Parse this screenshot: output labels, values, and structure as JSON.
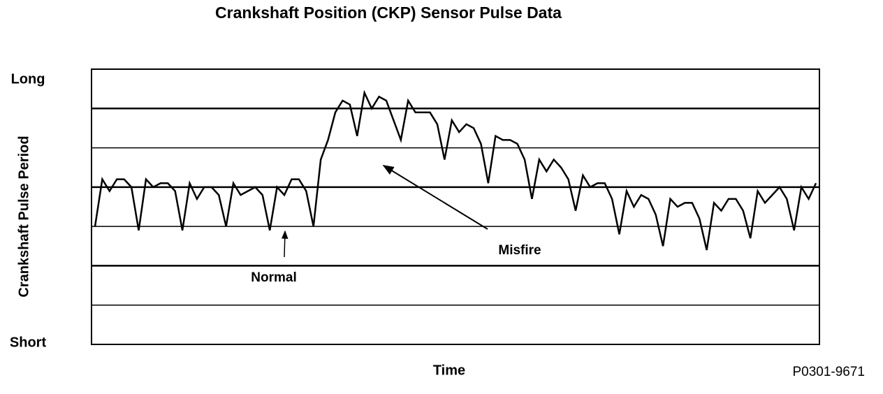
{
  "chart_data": {
    "type": "line",
    "title": "Crankshaft Position (CKP) Sensor Pulse Data",
    "x_label": "Time",
    "y_label": "Crankshaft Pulse Period",
    "figure_code": "P0301-9671",
    "annotations": [
      "Normal",
      "Misfire"
    ],
    "ylim": [
      0,
      7
    ],
    "yticks": [
      {
        "value": 7,
        "label": "Long"
      },
      {
        "value": 0,
        "label": "Short"
      }
    ],
    "major_grid": [
      2,
      4,
      6
    ],
    "minor_grid": [
      1,
      3,
      5
    ],
    "color": "#000000",
    "values": [
      3.0,
      4.2,
      3.9,
      4.2,
      4.2,
      4.0,
      2.9,
      4.2,
      4.0,
      4.1,
      4.1,
      3.9,
      2.9,
      4.1,
      3.7,
      4.0,
      4.0,
      3.8,
      3.0,
      4.1,
      3.8,
      3.9,
      4.0,
      3.8,
      2.9,
      4.0,
      3.8,
      4.2,
      4.2,
      3.9,
      3.0,
      4.7,
      5.2,
      5.9,
      6.2,
      6.1,
      5.3,
      6.4,
      6.0,
      6.3,
      6.2,
      5.7,
      5.2,
      6.2,
      5.9,
      5.9,
      5.9,
      5.6,
      4.7,
      5.7,
      5.4,
      5.6,
      5.5,
      5.1,
      4.1,
      5.3,
      5.2,
      5.2,
      5.1,
      4.7,
      3.7,
      4.7,
      4.4,
      4.7,
      4.5,
      4.2,
      3.4,
      4.3,
      4.0,
      4.1,
      4.1,
      3.7,
      2.8,
      3.9,
      3.5,
      3.8,
      3.7,
      3.3,
      2.5,
      3.7,
      3.5,
      3.6,
      3.6,
      3.2,
      2.4,
      3.6,
      3.4,
      3.7,
      3.7,
      3.4,
      2.7,
      3.9,
      3.6,
      3.8,
      4.0,
      3.7,
      2.9,
      4.0,
      3.7,
      4.1
    ]
  }
}
